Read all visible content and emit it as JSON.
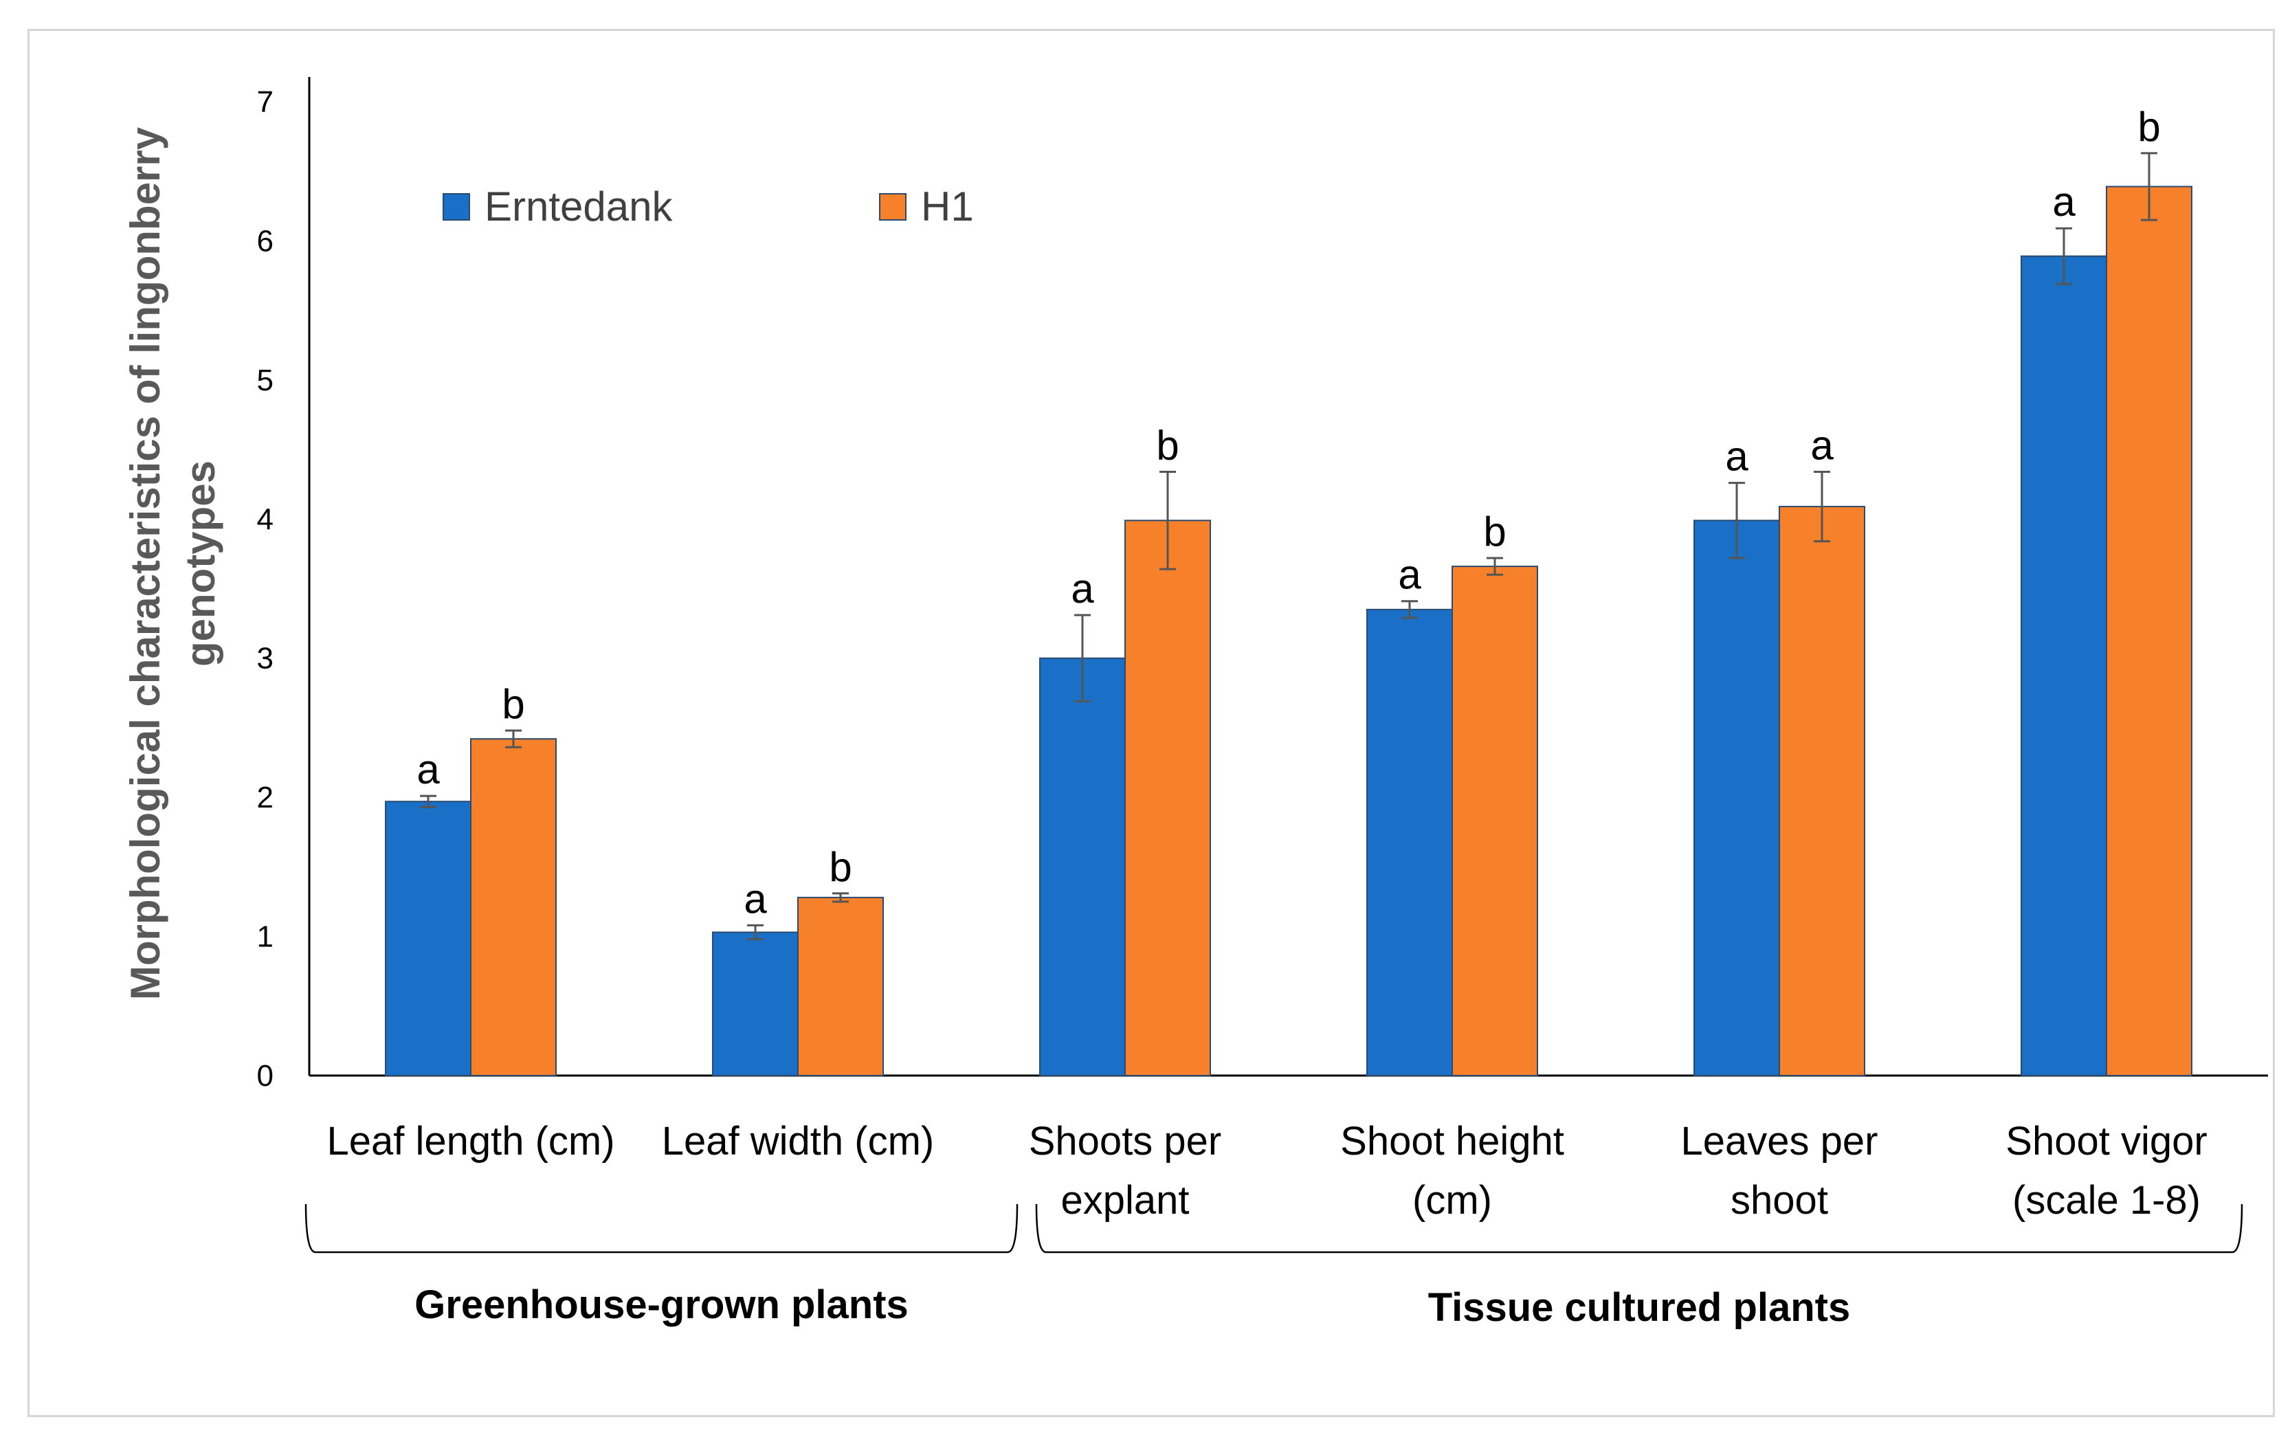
{
  "chart_data": {
    "type": "bar",
    "title": "",
    "xlabel": "",
    "ylabel": [
      "Morphological characteristics of lingonberry",
      "genotypes"
    ],
    "ylim": [
      0,
      7
    ],
    "yticks": [
      0,
      1,
      2,
      3,
      4,
      5,
      6,
      7
    ],
    "grid": false,
    "legend_position": "top-left",
    "categories": [
      [
        "Leaf length (cm)"
      ],
      [
        "Leaf width (cm)"
      ],
      [
        "Shoots per",
        "explant"
      ],
      [
        "Shoot height",
        "(cm)"
      ],
      [
        "Leaves per",
        "shoot"
      ],
      [
        "Shoot vigor",
        "(scale 1-8)"
      ]
    ],
    "series": [
      {
        "name": "Erntedank",
        "color": "#1a70c7",
        "values": [
          1.97,
          1.03,
          3.0,
          3.35,
          3.99,
          5.89
        ],
        "errors": [
          0.04,
          0.05,
          0.31,
          0.06,
          0.27,
          0.2
        ],
        "labels": [
          "a",
          "a",
          "a",
          "a",
          "a",
          "a"
        ]
      },
      {
        "name": "H1",
        "color": "#f7812a",
        "values": [
          2.42,
          1.28,
          3.99,
          3.66,
          4.09,
          6.39
        ],
        "errors": [
          0.06,
          0.03,
          0.35,
          0.06,
          0.25,
          0.24
        ],
        "labels": [
          "b",
          "b",
          "b",
          "b",
          "a",
          "b"
        ]
      }
    ],
    "groups": [
      {
        "label": "Greenhouse-grown plants",
        "categories": [
          0,
          1
        ]
      },
      {
        "label": "Tissue cultured plants",
        "categories": [
          2,
          3,
          4,
          5
        ]
      }
    ]
  }
}
